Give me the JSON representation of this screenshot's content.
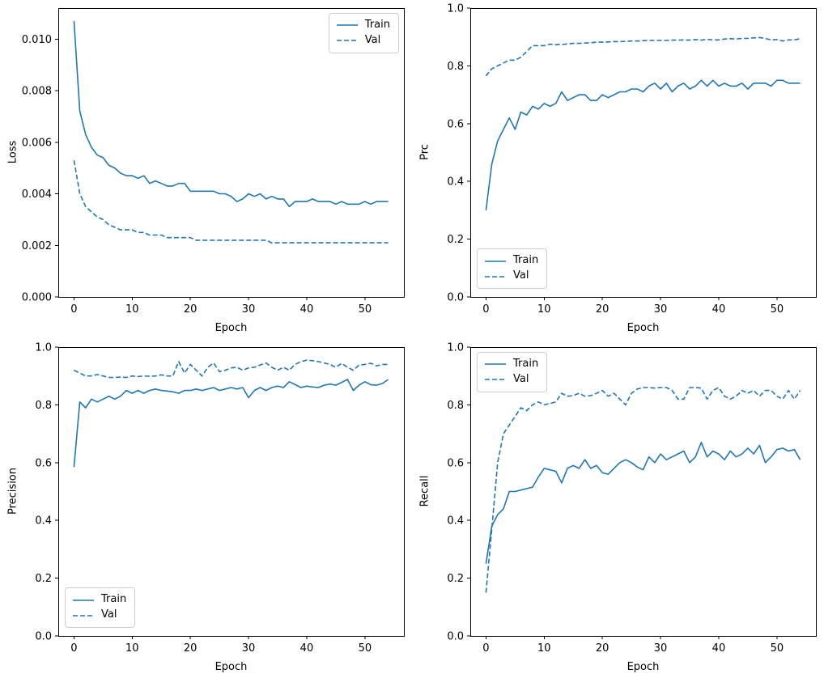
{
  "figure": {
    "background": "#ffffff",
    "accent": "#1f77b4",
    "spine_color": "#000000",
    "legend_border": "#cccccc"
  },
  "chart_data": [
    {
      "type": "line",
      "title": "",
      "xlabel": "Epoch",
      "ylabel": "Loss",
      "xlim": [
        -2.7,
        56.7
      ],
      "ylim": [
        0,
        0.0112
      ],
      "grid": false,
      "legend_loc": "upper right",
      "xticks": [
        0,
        10,
        20,
        30,
        40,
        50
      ],
      "xticklabels": [
        "0",
        "10",
        "20",
        "30",
        "40",
        "50"
      ],
      "yticks": [
        0.0,
        0.002,
        0.004,
        0.006,
        0.008,
        0.01
      ],
      "yticklabels": [
        "0.000",
        "0.002",
        "0.004",
        "0.006",
        "0.008",
        "0.010"
      ],
      "x": [
        0,
        1,
        2,
        3,
        4,
        5,
        6,
        7,
        8,
        9,
        10,
        11,
        12,
        13,
        14,
        15,
        16,
        17,
        18,
        19,
        20,
        21,
        22,
        23,
        24,
        25,
        26,
        27,
        28,
        29,
        30,
        31,
        32,
        33,
        34,
        35,
        36,
        37,
        38,
        39,
        40,
        41,
        42,
        43,
        44,
        45,
        46,
        47,
        48,
        49,
        50,
        51,
        52,
        53,
        54
      ],
      "series": [
        {
          "name": "Train",
          "style": "solid",
          "values": [
            0.0107,
            0.0072,
            0.0063,
            0.0058,
            0.0055,
            0.0054,
            0.0051,
            0.005,
            0.0048,
            0.0047,
            0.0047,
            0.0046,
            0.0047,
            0.0044,
            0.0045,
            0.0044,
            0.0043,
            0.0043,
            0.0044,
            0.0044,
            0.0041,
            0.0041,
            0.0041,
            0.0041,
            0.0041,
            0.004,
            0.004,
            0.0039,
            0.0037,
            0.0038,
            0.004,
            0.0039,
            0.004,
            0.0038,
            0.0039,
            0.0038,
            0.0038,
            0.0035,
            0.0037,
            0.0037,
            0.0037,
            0.0038,
            0.0037,
            0.0037,
            0.0037,
            0.0036,
            0.0037,
            0.0036,
            0.0036,
            0.0036,
            0.0037,
            0.0036,
            0.0037,
            0.0037,
            0.0037
          ]
        },
        {
          "name": "Val",
          "style": "dashed",
          "values": [
            0.0053,
            0.004,
            0.0035,
            0.0033,
            0.0031,
            0.003,
            0.0028,
            0.0027,
            0.0026,
            0.0026,
            0.0026,
            0.0025,
            0.0025,
            0.0024,
            0.0024,
            0.0024,
            0.0023,
            0.0023,
            0.0023,
            0.0023,
            0.0023,
            0.0022,
            0.0022,
            0.0022,
            0.0022,
            0.0022,
            0.0022,
            0.0022,
            0.0022,
            0.0022,
            0.0022,
            0.0022,
            0.0022,
            0.0022,
            0.0021,
            0.0021,
            0.0021,
            0.0021,
            0.0021,
            0.0021,
            0.0021,
            0.0021,
            0.0021,
            0.0021,
            0.0021,
            0.0021,
            0.0021,
            0.0021,
            0.0021,
            0.0021,
            0.0021,
            0.0021,
            0.0021,
            0.0021,
            0.0021
          ]
        }
      ]
    },
    {
      "type": "line",
      "title": "",
      "xlabel": "Epoch",
      "ylabel": "Prc",
      "xlim": [
        -2.7,
        56.7
      ],
      "ylim": [
        0,
        1.0
      ],
      "grid": false,
      "legend_loc": "lower left",
      "xticks": [
        0,
        10,
        20,
        30,
        40,
        50
      ],
      "xticklabels": [
        "0",
        "10",
        "20",
        "30",
        "40",
        "50"
      ],
      "yticks": [
        0.0,
        0.2,
        0.4,
        0.6,
        0.8,
        1.0
      ],
      "yticklabels": [
        "0.0",
        "0.2",
        "0.4",
        "0.6",
        "0.8",
        "1.0"
      ],
      "x": [
        0,
        1,
        2,
        3,
        4,
        5,
        6,
        7,
        8,
        9,
        10,
        11,
        12,
        13,
        14,
        15,
        16,
        17,
        18,
        19,
        20,
        21,
        22,
        23,
        24,
        25,
        26,
        27,
        28,
        29,
        30,
        31,
        32,
        33,
        34,
        35,
        36,
        37,
        38,
        39,
        40,
        41,
        42,
        43,
        44,
        45,
        46,
        47,
        48,
        49,
        50,
        51,
        52,
        53,
        54
      ],
      "series": [
        {
          "name": "Train",
          "style": "solid",
          "values": [
            0.3,
            0.46,
            0.54,
            0.58,
            0.62,
            0.58,
            0.64,
            0.63,
            0.66,
            0.65,
            0.67,
            0.66,
            0.67,
            0.71,
            0.68,
            0.69,
            0.7,
            0.7,
            0.68,
            0.68,
            0.7,
            0.69,
            0.7,
            0.71,
            0.71,
            0.72,
            0.72,
            0.71,
            0.73,
            0.74,
            0.72,
            0.74,
            0.71,
            0.73,
            0.74,
            0.72,
            0.73,
            0.75,
            0.73,
            0.75,
            0.73,
            0.74,
            0.73,
            0.73,
            0.74,
            0.72,
            0.74,
            0.74,
            0.74,
            0.73,
            0.75,
            0.75,
            0.74,
            0.74,
            0.74
          ]
        },
        {
          "name": "Val",
          "style": "dashed",
          "values": [
            0.765,
            0.79,
            0.8,
            0.81,
            0.82,
            0.82,
            0.83,
            0.85,
            0.87,
            0.87,
            0.87,
            0.875,
            0.873,
            0.874,
            0.876,
            0.878,
            0.878,
            0.879,
            0.88,
            0.882,
            0.882,
            0.883,
            0.884,
            0.884,
            0.885,
            0.886,
            0.886,
            0.887,
            0.888,
            0.888,
            0.888,
            0.888,
            0.889,
            0.889,
            0.89,
            0.889,
            0.891,
            0.889,
            0.892,
            0.89,
            0.89,
            0.893,
            0.894,
            0.893,
            0.895,
            0.895,
            0.897,
            0.898,
            0.895,
            0.89,
            0.891,
            0.886,
            0.89,
            0.89,
            0.894
          ]
        }
      ]
    },
    {
      "type": "line",
      "title": "",
      "xlabel": "Epoch",
      "ylabel": "Precision",
      "xlim": [
        -2.7,
        56.7
      ],
      "ylim": [
        0,
        1.0
      ],
      "grid": false,
      "legend_loc": "lower left",
      "xticks": [
        0,
        10,
        20,
        30,
        40,
        50
      ],
      "xticklabels": [
        "0",
        "10",
        "20",
        "30",
        "40",
        "50"
      ],
      "yticks": [
        0.0,
        0.2,
        0.4,
        0.6,
        0.8,
        1.0
      ],
      "yticklabels": [
        "0.0",
        "0.2",
        "0.4",
        "0.6",
        "0.8",
        "1.0"
      ],
      "x": [
        0,
        1,
        2,
        3,
        4,
        5,
        6,
        7,
        8,
        9,
        10,
        11,
        12,
        13,
        14,
        15,
        16,
        17,
        18,
        19,
        20,
        21,
        22,
        23,
        24,
        25,
        26,
        27,
        28,
        29,
        30,
        31,
        32,
        33,
        34,
        35,
        36,
        37,
        38,
        39,
        40,
        41,
        42,
        43,
        44,
        45,
        46,
        47,
        48,
        49,
        50,
        51,
        52,
        53,
        54
      ],
      "series": [
        {
          "name": "Train",
          "style": "solid",
          "values": [
            0.585,
            0.81,
            0.79,
            0.82,
            0.81,
            0.82,
            0.83,
            0.82,
            0.83,
            0.85,
            0.84,
            0.85,
            0.84,
            0.85,
            0.855,
            0.85,
            0.848,
            0.845,
            0.84,
            0.85,
            0.85,
            0.855,
            0.85,
            0.855,
            0.86,
            0.85,
            0.855,
            0.86,
            0.855,
            0.86,
            0.825,
            0.85,
            0.86,
            0.85,
            0.86,
            0.865,
            0.86,
            0.88,
            0.87,
            0.86,
            0.865,
            0.862,
            0.86,
            0.868,
            0.872,
            0.868,
            0.878,
            0.888,
            0.85,
            0.868,
            0.88,
            0.87,
            0.868,
            0.874,
            0.888
          ]
        },
        {
          "name": "Val",
          "style": "dashed",
          "values": [
            0.92,
            0.91,
            0.9,
            0.9,
            0.905,
            0.9,
            0.895,
            0.895,
            0.896,
            0.895,
            0.9,
            0.898,
            0.9,
            0.899,
            0.9,
            0.904,
            0.9,
            0.9,
            0.95,
            0.91,
            0.94,
            0.92,
            0.9,
            0.93,
            0.945,
            0.915,
            0.92,
            0.928,
            0.93,
            0.92,
            0.928,
            0.93,
            0.938,
            0.945,
            0.93,
            0.92,
            0.93,
            0.92,
            0.94,
            0.95,
            0.955,
            0.953,
            0.95,
            0.945,
            0.94,
            0.93,
            0.944,
            0.93,
            0.92,
            0.938,
            0.94,
            0.944,
            0.935,
            0.94,
            0.94
          ]
        }
      ]
    },
    {
      "type": "line",
      "title": "",
      "xlabel": "Epoch",
      "ylabel": "Recall",
      "xlim": [
        -2.7,
        56.7
      ],
      "ylim": [
        0,
        1.0
      ],
      "grid": false,
      "legend_loc": "upper left",
      "xticks": [
        0,
        10,
        20,
        30,
        40,
        50
      ],
      "xticklabels": [
        "0",
        "10",
        "20",
        "30",
        "40",
        "50"
      ],
      "yticks": [
        0.0,
        0.2,
        0.4,
        0.6,
        0.8,
        1.0
      ],
      "yticklabels": [
        "0.0",
        "0.2",
        "0.4",
        "0.6",
        "0.8",
        "1.0"
      ],
      "x": [
        0,
        1,
        2,
        3,
        4,
        5,
        6,
        7,
        8,
        9,
        10,
        11,
        12,
        13,
        14,
        15,
        16,
        17,
        18,
        19,
        20,
        21,
        22,
        23,
        24,
        25,
        26,
        27,
        28,
        29,
        30,
        31,
        32,
        33,
        34,
        35,
        36,
        37,
        38,
        39,
        40,
        41,
        42,
        43,
        44,
        45,
        46,
        47,
        48,
        49,
        50,
        51,
        52,
        53,
        54
      ],
      "series": [
        {
          "name": "Train",
          "style": "solid",
          "values": [
            0.25,
            0.38,
            0.42,
            0.44,
            0.5,
            0.5,
            0.505,
            0.51,
            0.515,
            0.55,
            0.58,
            0.575,
            0.57,
            0.53,
            0.58,
            0.59,
            0.58,
            0.61,
            0.58,
            0.59,
            0.565,
            0.56,
            0.58,
            0.6,
            0.61,
            0.6,
            0.585,
            0.575,
            0.62,
            0.6,
            0.63,
            0.61,
            0.62,
            0.63,
            0.64,
            0.6,
            0.62,
            0.67,
            0.62,
            0.64,
            0.63,
            0.61,
            0.64,
            0.62,
            0.63,
            0.65,
            0.63,
            0.66,
            0.6,
            0.62,
            0.645,
            0.65,
            0.64,
            0.645,
            0.61
          ]
        },
        {
          "name": "Val",
          "style": "dashed",
          "values": [
            0.15,
            0.37,
            0.6,
            0.7,
            0.73,
            0.76,
            0.79,
            0.78,
            0.8,
            0.81,
            0.8,
            0.805,
            0.81,
            0.84,
            0.83,
            0.832,
            0.84,
            0.83,
            0.832,
            0.84,
            0.85,
            0.83,
            0.84,
            0.82,
            0.8,
            0.84,
            0.855,
            0.86,
            0.86,
            0.858,
            0.86,
            0.86,
            0.85,
            0.82,
            0.82,
            0.86,
            0.86,
            0.858,
            0.82,
            0.85,
            0.86,
            0.83,
            0.82,
            0.83,
            0.85,
            0.84,
            0.85,
            0.83,
            0.85,
            0.85,
            0.83,
            0.82,
            0.85,
            0.82,
            0.85
          ]
        }
      ]
    }
  ]
}
